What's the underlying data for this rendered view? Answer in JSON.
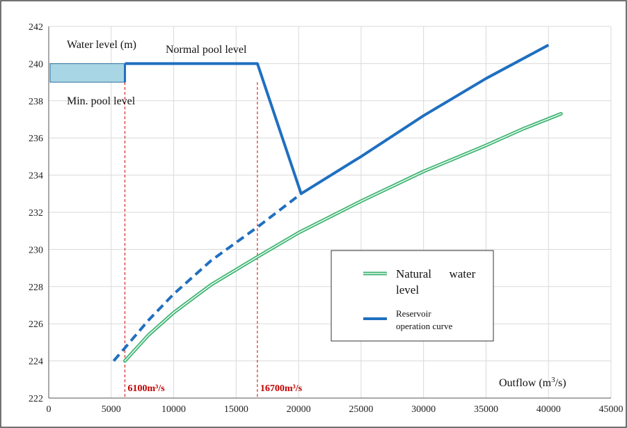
{
  "chart_data": {
    "type": "line",
    "title": "",
    "xlabel": "Outflow (m³/s)",
    "xlabel_main": "Outflow (m",
    "xlabel_sup": "3",
    "xlabel_tail": "/s)",
    "ylabel": "Water level (m)",
    "xlim": [
      0,
      45000
    ],
    "ylim": [
      222,
      242
    ],
    "xticks": [
      0,
      5000,
      10000,
      15000,
      20000,
      25000,
      30000,
      35000,
      40000,
      45000
    ],
    "yticks": [
      222,
      224,
      226,
      228,
      230,
      232,
      234,
      236,
      238,
      240,
      242
    ],
    "grid": true,
    "legend_position": "lower-right",
    "series": [
      {
        "name": "Natural water level",
        "name_line1": "Natural      water",
        "name_line2": "level",
        "color": "#3cb371",
        "style": "double-line",
        "points": [
          [
            6100,
            224
          ],
          [
            8000,
            225.4
          ],
          [
            10000,
            226.6
          ],
          [
            13000,
            228.1
          ],
          [
            16700,
            229.6
          ],
          [
            20000,
            230.9
          ],
          [
            25000,
            232.6
          ],
          [
            30000,
            234.2
          ],
          [
            35000,
            235.6
          ],
          [
            38000,
            236.5
          ],
          [
            41000,
            237.3
          ]
        ]
      },
      {
        "name": "Reservoir operation curve",
        "name_line1": "Reservoir",
        "name_line2": "operation curve",
        "color": "#1f6fc0",
        "style": "solid",
        "segments": [
          {
            "style": "dashed",
            "points": [
              [
                5200,
                224
              ],
              [
                6100,
                224.7
              ],
              [
                8000,
                226.2
              ],
              [
                10000,
                227.6
              ],
              [
                13000,
                229.4
              ],
              [
                16700,
                231.2
              ],
              [
                20200,
                233
              ]
            ]
          },
          {
            "style": "solid",
            "points": [
              [
                6100,
                240
              ],
              [
                16700,
                240
              ],
              [
                20200,
                233
              ],
              [
                25000,
                235
              ],
              [
                30000,
                237.2
              ],
              [
                35000,
                239.2
              ],
              [
                40000,
                241
              ]
            ]
          }
        ]
      }
    ],
    "pool_band": {
      "x": [
        0,
        6100
      ],
      "y": [
        239,
        240
      ],
      "color": "#a9d6e5"
    },
    "pool_wall": {
      "x": 6100,
      "y": [
        239,
        240
      ]
    },
    "vlines": [
      {
        "x": 6100,
        "label": "6100m³/s",
        "color": "#d00000"
      },
      {
        "x": 16700,
        "label": "16700m³/s",
        "color": "#d00000"
      }
    ],
    "annotations": {
      "water_level": "Water level (m)",
      "normal_pool": "Normal pool level",
      "min_pool": "Min. pool level"
    }
  }
}
